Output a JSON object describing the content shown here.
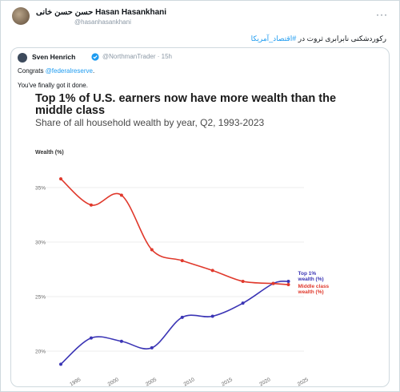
{
  "tweet": {
    "author_name": "حسن حسن خانی Hasan Hasankhani",
    "author_handle": "@hasanhasankhani",
    "more_label": "···",
    "text_main": "رکوردشکنی نابرابری ثروت در ",
    "text_hashtag": "#اقتصاد_آمریکا",
    "quoted": {
      "author_name": "Sven Henrich",
      "author_handle": "@NorthmanTrader · 15h",
      "line1_prefix": "Congrats ",
      "line1_mention": "@federalreserve",
      "line1_suffix": ".",
      "line2": "You've finally got it done."
    }
  },
  "colors": {
    "top1": "#3b35b5",
    "middle": "#e0392c",
    "grid": "#e6e6e6"
  },
  "chart_data": {
    "type": "line",
    "title": "Top 1% of U.S. earners now have more wealth than the middle class",
    "subtitle": "Share of all household wealth by year, Q2, 1993-2023",
    "ylabel": "Wealth (%)",
    "y_ticks": [
      "20%",
      "25%",
      "30%",
      "35%"
    ],
    "x_ticks": [
      "1995",
      "2000",
      "2005",
      "2010",
      "2015",
      "2020",
      "2025"
    ],
    "xlim": [
      1993,
      2024
    ],
    "ylim": [
      17.5,
      37.5
    ],
    "series": [
      {
        "name": "Top 1% wealth (%)",
        "x": [
          1993,
          1997,
          2001,
          2005,
          2009,
          2013,
          2017,
          2021,
          2023
        ],
        "y": [
          18.8,
          21.2,
          20.9,
          20.3,
          23.1,
          23.2,
          24.4,
          26.2,
          26.4
        ]
      },
      {
        "name": "Middle class wealth (%)",
        "x": [
          1993,
          1997,
          2001,
          2005,
          2009,
          2013,
          2017,
          2021,
          2023
        ],
        "y": [
          35.8,
          33.4,
          34.3,
          29.3,
          28.3,
          27.4,
          26.4,
          26.2,
          26.1
        ]
      }
    ]
  }
}
